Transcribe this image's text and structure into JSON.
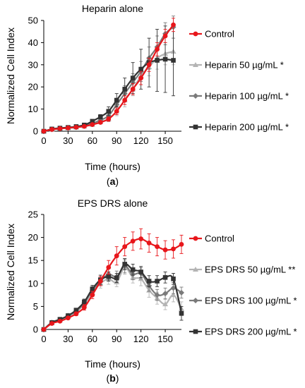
{
  "chart_data": [
    {
      "type": "line",
      "panel_label": "(a)",
      "panel_letter": "a",
      "title": "Heparin alone",
      "xlabel": "Time (hours)",
      "ylabel": "Normalized Cell Index",
      "xlim": [
        0,
        170
      ],
      "ylim": [
        0,
        50
      ],
      "xticks": [
        0,
        30,
        60,
        90,
        120,
        150
      ],
      "yticks": [
        0,
        10,
        20,
        30,
        40,
        50
      ],
      "legend_position": "right",
      "x": [
        0,
        10,
        20,
        30,
        40,
        50,
        60,
        70,
        80,
        90,
        100,
        110,
        120,
        130,
        140,
        150,
        160
      ],
      "series": [
        {
          "name": "Control",
          "color": "#e8161b",
          "marker": "circle",
          "values": [
            0,
            0.8,
            1.2,
            1.5,
            1.8,
            2.2,
            3,
            4,
            5.5,
            9,
            14,
            19,
            24,
            30,
            37,
            43,
            48
          ],
          "errors": [
            0,
            0.2,
            0.2,
            0.3,
            0.3,
            0.4,
            0.5,
            0.6,
            1,
            1.5,
            2,
            2.5,
            3,
            3,
            3,
            3,
            3
          ]
        },
        {
          "name": "Heparin 50 µg/mL *",
          "color": "#b4b4b4",
          "marker": "triangle",
          "values": [
            0,
            0.8,
            1.2,
            1.4,
            1.7,
            2.2,
            3,
            4.2,
            5.5,
            9,
            14,
            19,
            25,
            29,
            33,
            35,
            36
          ],
          "errors": [
            0,
            0.2,
            0.2,
            0.3,
            0.3,
            0.4,
            0.5,
            0.7,
            1.2,
            2,
            3,
            3,
            4,
            4,
            5,
            5,
            6
          ]
        },
        {
          "name": "Heparin 100 µg/mL *",
          "color": "#7a7a7a",
          "marker": "diamond",
          "values": [
            0,
            0.8,
            1.2,
            1.5,
            1.8,
            2.4,
            3.5,
            5,
            7,
            12,
            17,
            22,
            27,
            33,
            38,
            44,
            47
          ],
          "errors": [
            0,
            0.2,
            0.3,
            0.3,
            0.4,
            0.5,
            0.6,
            0.8,
            1.5,
            2.5,
            3.5,
            4,
            4.5,
            5,
            5,
            5,
            5
          ]
        },
        {
          "name": "Heparin 200 µg/mL *",
          "color": "#333333",
          "marker": "square",
          "values": [
            0,
            1,
            1.4,
            1.7,
            2.1,
            2.8,
            4.5,
            6.5,
            9,
            14,
            19,
            24,
            28,
            31,
            32,
            32.5,
            32
          ],
          "errors": [
            0,
            0.2,
            0.3,
            0.3,
            0.4,
            0.5,
            0.7,
            1,
            2,
            3,
            5,
            7,
            9,
            11,
            14,
            15,
            16
          ]
        }
      ]
    },
    {
      "type": "line",
      "panel_label": "(b)",
      "panel_letter": "b",
      "title": "EPS DRS alone",
      "xlabel": "Time (hours)",
      "ylabel": "Normalized Cell Index",
      "xlim": [
        0,
        170
      ],
      "ylim": [
        0,
        25
      ],
      "xticks": [
        0,
        30,
        60,
        90,
        120,
        150
      ],
      "yticks": [
        0,
        5,
        10,
        15,
        20,
        25
      ],
      "legend_position": "right",
      "x": [
        0,
        10,
        20,
        30,
        40,
        50,
        60,
        70,
        80,
        90,
        100,
        110,
        120,
        130,
        140,
        150,
        160,
        170
      ],
      "series": [
        {
          "name": "Control",
          "color": "#e8161b",
          "marker": "circle",
          "values": [
            0,
            1.3,
            1.8,
            2.5,
            3.4,
            4.8,
            7.5,
            10.5,
            13.5,
            16,
            18,
            19.2,
            19.7,
            18.8,
            18,
            17.3,
            17.5,
            18.5
          ],
          "errors": [
            0,
            0.2,
            0.3,
            0.3,
            0.4,
            0.6,
            0.8,
            1,
            1.5,
            2,
            2,
            2,
            2.2,
            2,
            2,
            2,
            2,
            2
          ]
        },
        {
          "name": "EPS DRS 50 µg/mL **",
          "color": "#b4b4b4",
          "marker": "triangle",
          "values": [
            0,
            1.4,
            2,
            2.8,
            3.8,
            5.5,
            8,
            10,
            11,
            10.3,
            13.5,
            11.3,
            11,
            8.5,
            6.8,
            5.5,
            7.5,
            4.5
          ],
          "errors": [
            0,
            0.2,
            0.3,
            0.3,
            0.4,
            0.6,
            0.8,
            1,
            1.2,
            1,
            1.5,
            1.2,
            1.5,
            1.5,
            1.3,
            1.2,
            1.5,
            1.5
          ]
        },
        {
          "name": "EPS DRS 100 µg/mL *",
          "color": "#7a7a7a",
          "marker": "diamond",
          "values": [
            0,
            1.5,
            2.1,
            3,
            4,
            5.8,
            8.5,
            10.5,
            12,
            11.5,
            13.8,
            12,
            12.2,
            9.5,
            7.5,
            7.8,
            9,
            8
          ],
          "errors": [
            0,
            0.2,
            0.3,
            0.3,
            0.4,
            0.6,
            0.8,
            1,
            1.2,
            1.2,
            1.5,
            1.2,
            1.2,
            1.2,
            1.2,
            1.2,
            1.2,
            1.2
          ]
        },
        {
          "name": "EPS DRS 200 µg/mL *",
          "color": "#333333",
          "marker": "square",
          "values": [
            0,
            1.5,
            2.2,
            3,
            4.2,
            6,
            8.8,
            10.8,
            11.5,
            11.2,
            14.2,
            13,
            12.5,
            10.5,
            10.5,
            11.3,
            11,
            3.5
          ],
          "errors": [
            0,
            0.2,
            0.3,
            0.3,
            0.4,
            0.6,
            0.8,
            1,
            1,
            1,
            1.2,
            1.2,
            1.2,
            1.2,
            1.2,
            1.2,
            1.2,
            1.5
          ]
        }
      ]
    }
  ]
}
